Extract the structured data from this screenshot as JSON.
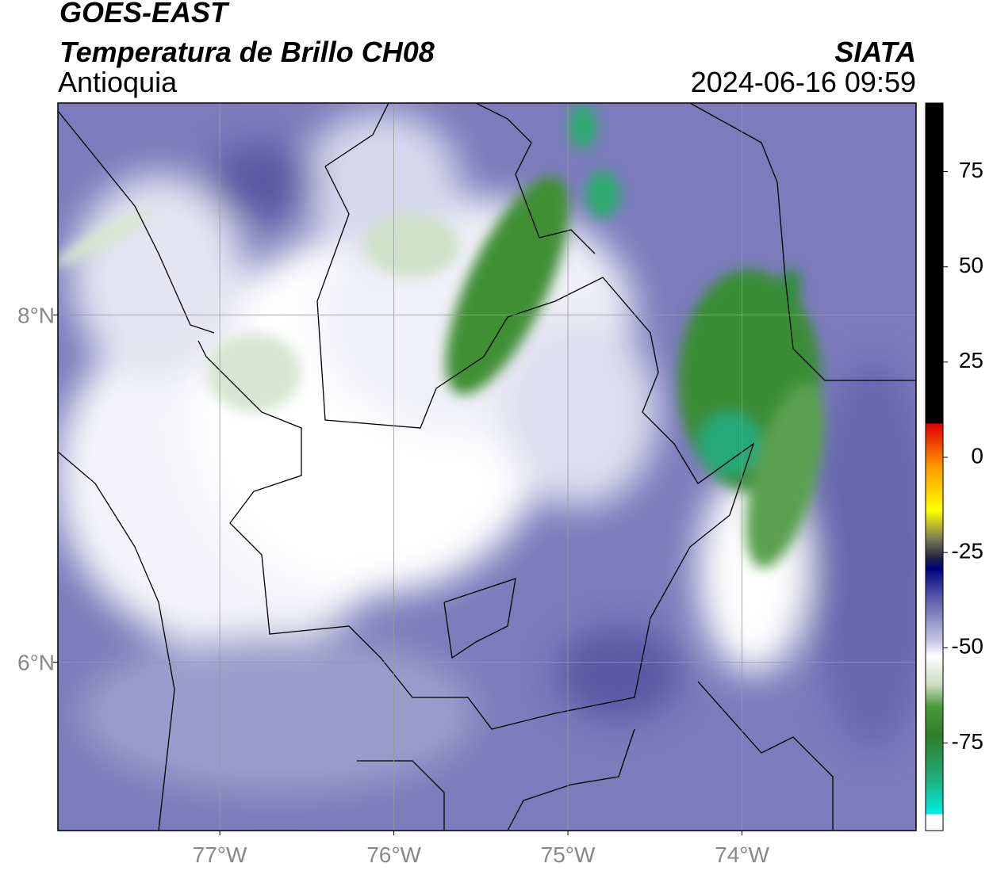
{
  "header": {
    "title": "GOES-EAST",
    "subtitle": "Temperatura de Brillo CH08",
    "region": "Antioquia",
    "source": "SIATA",
    "datetime": "2024-06-16 09:59"
  },
  "map": {
    "xlim": [
      -77.93,
      -73.0
    ],
    "ylim": [
      5.03,
      9.22
    ],
    "xticks": [
      {
        "value": -77,
        "label": "77°W"
      },
      {
        "value": -76,
        "label": "76°W"
      },
      {
        "value": -75,
        "label": "75°W"
      },
      {
        "value": -74,
        "label": "74°W"
      }
    ],
    "yticks": [
      {
        "value": 8,
        "label": "8°N"
      },
      {
        "value": 6,
        "label": "6°N"
      }
    ]
  },
  "colorbar": {
    "lim": [
      -98,
      93
    ],
    "ticks": [
      75,
      50,
      25,
      0,
      -25,
      -50,
      -75
    ]
  }
}
